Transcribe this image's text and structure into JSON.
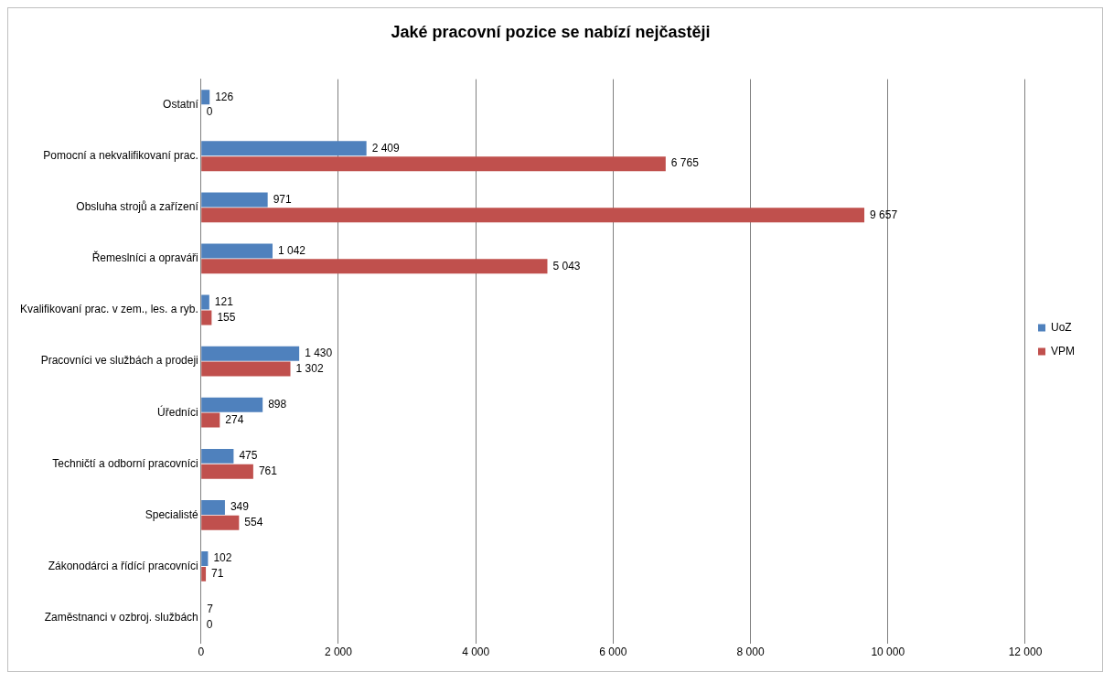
{
  "chart_data": {
    "type": "bar",
    "orientation": "horizontal",
    "title": "Jaké pracovní pozice se nabízí nejčastěji",
    "categories": [
      "Ostatní",
      "Pomocní a nekvalifikovaní prac.",
      "Obsluha strojů a zařízení",
      "Řemeslníci a opraváři",
      "Kvalifikovaní prac. v zem., les. a ryb.",
      "Pracovníci ve službách a prodeji",
      "Úředníci",
      "Techničtí a odborní pracovníci",
      "Specialisté",
      "Zákonodárci a řídící pracovníci",
      "Zaměstnanci v ozbroj. službách"
    ],
    "series": [
      {
        "name": "UoZ",
        "color": "#4f81bd",
        "values": [
          126,
          2409,
          971,
          1042,
          121,
          1430,
          898,
          475,
          349,
          102,
          7
        ],
        "value_labels": [
          "126",
          "2 409",
          "971",
          "1 042",
          "121",
          "1 430",
          "898",
          "475",
          "349",
          "102",
          "7"
        ]
      },
      {
        "name": "VPM",
        "color": "#c0504d",
        "values": [
          0,
          6765,
          9657,
          5043,
          155,
          1302,
          274,
          761,
          554,
          71,
          0
        ],
        "value_labels": [
          "0",
          "6 765",
          "9 657",
          "5 043",
          "155",
          "1 302",
          "274",
          "761",
          "554",
          "71",
          "0"
        ]
      }
    ],
    "xlim": [
      0,
      12000
    ],
    "xticks": [
      0,
      {
        "value": 2000,
        "label": "2 000"
      },
      {
        "value": 4000,
        "label": "4 000"
      },
      {
        "value": 6000,
        "label": "6 000"
      },
      {
        "value": 8000,
        "label": "8 000"
      },
      {
        "value": 10000,
        "label": "10 000"
      },
      {
        "value": 12000,
        "label": "12 000"
      }
    ],
    "grid": "x",
    "legend": "right"
  }
}
